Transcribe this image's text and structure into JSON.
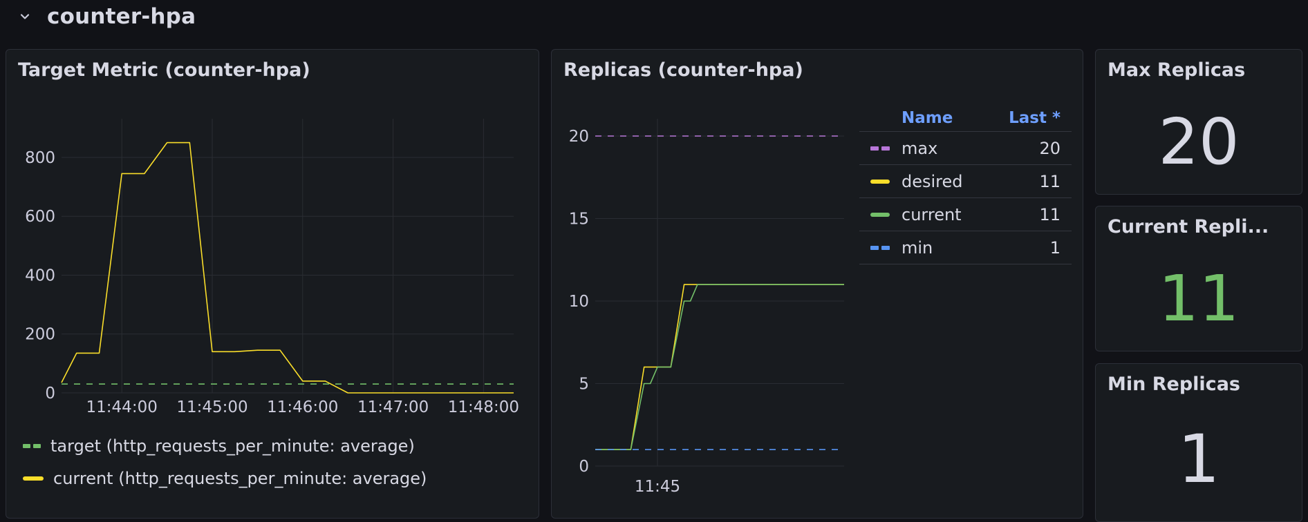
{
  "row": {
    "title": "counter-hpa"
  },
  "panels": {
    "target_metric": {
      "title": "Target Metric (counter-hpa)",
      "legend": [
        {
          "label": "target (http_requests_per_minute: average)",
          "color": "#73bf69",
          "style": "dashed"
        },
        {
          "label": "current (http_requests_per_minute: average)",
          "color": "#fade2a",
          "style": "solid"
        }
      ]
    },
    "replicas": {
      "title": "Replicas (counter-hpa)",
      "legend_header": {
        "name": "Name",
        "last": "Last *"
      },
      "legend": [
        {
          "label": "max",
          "value": "20",
          "color": "#b877d9",
          "style": "dashed"
        },
        {
          "label": "desired",
          "value": "11",
          "color": "#fade2a",
          "style": "solid"
        },
        {
          "label": "current",
          "value": "11",
          "color": "#73bf69",
          "style": "solid"
        },
        {
          "label": "min",
          "value": "1",
          "color": "#5794f2",
          "style": "dashed"
        }
      ]
    },
    "max_replicas": {
      "title": "Max Replicas",
      "value": "20",
      "color": "#d8d9e4"
    },
    "current_replicas": {
      "title": "Current Repli...",
      "value": "11",
      "color": "#73bf69"
    },
    "min_replicas": {
      "title": "Min Replicas",
      "value": "1",
      "color": "#d8d9e4"
    }
  },
  "chart_data": [
    {
      "type": "line",
      "title": "Target Metric (counter-hpa)",
      "x_ticks": [
        "11:44:00",
        "11:45:00",
        "11:46:00",
        "11:47:00",
        "11:48:00"
      ],
      "y_ticks": [
        0,
        200,
        400,
        600,
        800
      ],
      "ylim": [
        0,
        950
      ],
      "xlim": [
        "11:43:20",
        "11:48:20"
      ],
      "series": [
        {
          "name": "target (http_requests_per_minute: average)",
          "color": "#73bf69",
          "style": "dashed",
          "x": [
            "11:43:20",
            "11:48:20"
          ],
          "y": [
            30,
            30
          ]
        },
        {
          "name": "current (http_requests_per_minute: average)",
          "color": "#fade2a",
          "style": "solid",
          "x": [
            "11:43:20",
            "11:43:30",
            "11:43:45",
            "11:44:00",
            "11:44:15",
            "11:44:30",
            "11:44:45",
            "11:45:00",
            "11:45:15",
            "11:45:30",
            "11:45:45",
            "11:46:00",
            "11:46:15",
            "11:46:30",
            "11:46:45",
            "11:48:20"
          ],
          "y": [
            35,
            135,
            135,
            745,
            745,
            850,
            850,
            140,
            140,
            145,
            145,
            40,
            40,
            0,
            0,
            0
          ]
        }
      ]
    },
    {
      "type": "line",
      "title": "Replicas (counter-hpa)",
      "x_ticks": [
        "11:45"
      ],
      "y_ticks": [
        0,
        5,
        10,
        15,
        20
      ],
      "ylim": [
        0,
        22
      ],
      "series": [
        {
          "name": "max",
          "color": "#b877d9",
          "style": "dashed",
          "x": [
            "11:43:50",
            "11:48:30"
          ],
          "y": [
            20,
            20
          ]
        },
        {
          "name": "desired",
          "color": "#fade2a",
          "style": "solid",
          "x": [
            "11:43:50",
            "11:44:30",
            "11:44:45",
            "11:45:00",
            "11:45:15",
            "11:45:30",
            "11:45:45",
            "11:48:30"
          ],
          "y": [
            1,
            1,
            6,
            6,
            6,
            11,
            11,
            11
          ]
        },
        {
          "name": "current",
          "color": "#73bf69",
          "style": "solid",
          "x": [
            "11:43:50",
            "11:44:30",
            "11:44:45",
            "11:44:52",
            "11:45:00",
            "11:45:15",
            "11:45:30",
            "11:45:37",
            "11:45:45",
            "11:48:30"
          ],
          "y": [
            1,
            1,
            5,
            5,
            6,
            6,
            10,
            10,
            11,
            11
          ]
        },
        {
          "name": "min",
          "color": "#5794f2",
          "style": "dashed",
          "x": [
            "11:43:50",
            "11:48:30"
          ],
          "y": [
            1,
            1
          ]
        }
      ]
    }
  ]
}
